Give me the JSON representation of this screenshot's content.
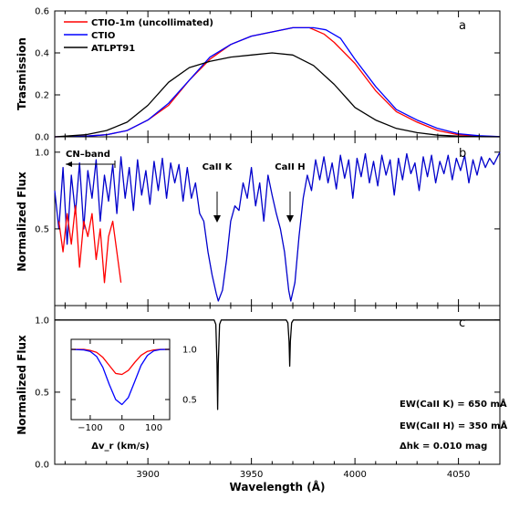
{
  "chart_data": [
    {
      "type": "line",
      "panel": "a",
      "ylabel": "Trasmission",
      "xlim": [
        3855,
        4070
      ],
      "ylim": [
        0.0,
        0.6
      ],
      "yticks": [
        "0.0",
        "0.2",
        "0.4",
        "0.6"
      ],
      "grid": false,
      "legend": "top-left",
      "series": [
        {
          "name": "CTIO-1m (uncollimated)",
          "color": "#ff0000",
          "x": [
            3855,
            3870,
            3880,
            3890,
            3900,
            3910,
            3920,
            3930,
            3940,
            3950,
            3960,
            3970,
            3978,
            3985,
            3990,
            4000,
            4010,
            4020,
            4030,
            4040,
            4050,
            4060,
            4070
          ],
          "y": [
            0.0,
            0.003,
            0.01,
            0.03,
            0.08,
            0.15,
            0.27,
            0.37,
            0.44,
            0.48,
            0.5,
            0.52,
            0.52,
            0.49,
            0.45,
            0.35,
            0.22,
            0.12,
            0.07,
            0.03,
            0.01,
            0.003,
            0.001
          ]
        },
        {
          "name": "CTIO",
          "color": "#0000ff",
          "x": [
            3855,
            3870,
            3880,
            3890,
            3900,
            3910,
            3920,
            3930,
            3940,
            3950,
            3960,
            3970,
            3980,
            3986,
            3993,
            4000,
            4010,
            4020,
            4030,
            4040,
            4050,
            4060,
            4070
          ],
          "y": [
            0.0,
            0.003,
            0.01,
            0.03,
            0.08,
            0.16,
            0.27,
            0.38,
            0.44,
            0.48,
            0.5,
            0.52,
            0.52,
            0.51,
            0.47,
            0.37,
            0.24,
            0.13,
            0.08,
            0.04,
            0.015,
            0.005,
            0.001
          ]
        },
        {
          "name": "ATLPT91",
          "color": "#000000",
          "x": [
            3855,
            3870,
            3880,
            3890,
            3900,
            3910,
            3920,
            3930,
            3940,
            3950,
            3960,
            3970,
            3980,
            3990,
            4000,
            4010,
            4020,
            4030,
            4040,
            4050,
            4060,
            4070
          ],
          "y": [
            0.0,
            0.01,
            0.03,
            0.07,
            0.15,
            0.26,
            0.33,
            0.36,
            0.38,
            0.39,
            0.4,
            0.39,
            0.34,
            0.25,
            0.14,
            0.08,
            0.04,
            0.02,
            0.008,
            0.003,
            0.001,
            0.0
          ]
        }
      ]
    },
    {
      "type": "line",
      "panel": "b",
      "ylabel": "Normalized Flux",
      "xlim": [
        3855,
        4070
      ],
      "ylim": [
        0.0,
        1.1
      ],
      "yticks": [
        "0.5",
        "1.0"
      ],
      "grid": false,
      "annotations": [
        {
          "text": "CN–band",
          "x": 3870,
          "y": 1.05
        },
        {
          "text": "CaII K",
          "x": 3933.7,
          "y": 1.0
        },
        {
          "text": "CaII H",
          "x": 3968.5,
          "y": 1.0
        }
      ],
      "series": [
        {
          "name": "",
          "color": "#0000cc",
          "x": [
            3855,
            3857,
            3859,
            3861,
            3863,
            3865,
            3867,
            3869,
            3871,
            3873,
            3875,
            3877,
            3879,
            3881,
            3883,
            3885,
            3887,
            3889,
            3891,
            3893,
            3895,
            3897,
            3899,
            3901,
            3903,
            3905,
            3907,
            3909,
            3911,
            3913,
            3915,
            3917,
            3919,
            3921,
            3923,
            3925,
            3927,
            3929,
            3931,
            3933,
            3934,
            3936,
            3938,
            3940,
            3942,
            3944,
            3946,
            3948,
            3950,
            3952,
            3954,
            3956,
            3958,
            3960,
            3962,
            3964,
            3966,
            3968,
            3969,
            3971,
            3973,
            3975,
            3977,
            3979,
            3981,
            3983,
            3985,
            3987,
            3989,
            3991,
            3993,
            3995,
            3997,
            3999,
            4001,
            4003,
            4005,
            4007,
            4009,
            4011,
            4013,
            4015,
            4017,
            4019,
            4021,
            4023,
            4025,
            4027,
            4029,
            4031,
            4033,
            4035,
            4037,
            4039,
            4041,
            4043,
            4045,
            4047,
            4049,
            4051,
            4053,
            4055,
            4057,
            4059,
            4061,
            4063,
            4065,
            4067,
            4070
          ],
          "y": [
            0.75,
            0.5,
            0.9,
            0.4,
            0.85,
            0.6,
            0.93,
            0.5,
            0.88,
            0.7,
            0.95,
            0.55,
            0.85,
            0.68,
            0.92,
            0.6,
            0.97,
            0.7,
            0.9,
            0.62,
            0.95,
            0.72,
            0.88,
            0.66,
            0.94,
            0.75,
            0.96,
            0.7,
            0.93,
            0.8,
            0.92,
            0.68,
            0.9,
            0.7,
            0.8,
            0.6,
            0.55,
            0.35,
            0.2,
            0.08,
            0.03,
            0.1,
            0.3,
            0.55,
            0.65,
            0.62,
            0.8,
            0.7,
            0.9,
            0.65,
            0.8,
            0.55,
            0.85,
            0.72,
            0.6,
            0.5,
            0.35,
            0.1,
            0.03,
            0.15,
            0.45,
            0.7,
            0.85,
            0.75,
            0.95,
            0.82,
            0.97,
            0.8,
            0.93,
            0.76,
            0.98,
            0.83,
            0.95,
            0.7,
            0.96,
            0.84,
            0.99,
            0.8,
            0.94,
            0.78,
            0.98,
            0.85,
            0.95,
            0.72,
            0.96,
            0.82,
            0.99,
            0.86,
            0.93,
            0.75,
            0.97,
            0.84,
            0.98,
            0.8,
            0.94,
            0.86,
            0.98,
            0.82,
            0.96,
            0.88,
            0.98,
            0.8,
            0.95,
            0.85,
            0.97,
            0.9,
            0.96,
            0.92,
            1.0
          ]
        },
        {
          "name": "",
          "color": "#ff0000",
          "x": [
            3857,
            3859,
            3861,
            3863,
            3865,
            3867,
            3869,
            3871,
            3873,
            3875,
            3877,
            3879,
            3881,
            3883,
            3885,
            3887
          ],
          "y": [
            0.55,
            0.35,
            0.6,
            0.4,
            0.65,
            0.25,
            0.55,
            0.45,
            0.6,
            0.3,
            0.5,
            0.15,
            0.45,
            0.55,
            0.35,
            0.15
          ]
        }
      ]
    },
    {
      "type": "line",
      "panel": "c",
      "ylabel": "Normalized Flux",
      "xlabel": "Wavelength (Å)",
      "xlim": [
        3855,
        4070
      ],
      "ylim": [
        0.0,
        1.1
      ],
      "xticks": [
        "3900",
        "3950",
        "4000",
        "4050"
      ],
      "yticks": [
        "0.0",
        "0.5",
        "1.0"
      ],
      "grid": false,
      "annotations": [
        {
          "text": "EW(CaII K) = 650 mÅ"
        },
        {
          "text": "EW(CaII H) = 350 mÅ"
        },
        {
          "text": "Δhk = 0.010 mag"
        }
      ],
      "series": [
        {
          "name": "",
          "color": "#000000",
          "x": [
            3855,
            3932.0,
            3932.8,
            3933.4,
            3933.7,
            3934.0,
            3934.6,
            3935.4,
            3966.8,
            3967.6,
            3968.2,
            3968.5,
            3968.8,
            3969.4,
            3970.2,
            4070
          ],
          "y": [
            1.0,
            1.0,
            0.97,
            0.7,
            0.38,
            0.7,
            0.97,
            1.0,
            1.0,
            0.98,
            0.85,
            0.68,
            0.85,
            0.98,
            1.0,
            1.0
          ]
        }
      ],
      "inset": {
        "xlabel": "Δv_r (km/s)",
        "xlim": [
          -160,
          150
        ],
        "ylim": [
          0.3,
          1.1
        ],
        "xticks": [
          "−100",
          "0",
          "100"
        ],
        "yticks": [
          "0.5",
          "1.0"
        ],
        "series": [
          {
            "name": "",
            "color": "#ff0000",
            "x": [
              -160,
              -120,
              -100,
              -80,
              -60,
              -40,
              -20,
              0,
              20,
              40,
              60,
              80,
              100,
              120,
              150
            ],
            "y": [
              1.0,
              1.0,
              0.99,
              0.97,
              0.92,
              0.84,
              0.76,
              0.75,
              0.79,
              0.87,
              0.94,
              0.98,
              0.995,
              1.0,
              1.0
            ]
          },
          {
            "name": "",
            "color": "#0000ff",
            "x": [
              -160,
              -120,
              -100,
              -80,
              -60,
              -40,
              -20,
              0,
              20,
              40,
              60,
              80,
              100,
              120,
              150
            ],
            "y": [
              1.0,
              0.995,
              0.98,
              0.93,
              0.82,
              0.65,
              0.5,
              0.45,
              0.52,
              0.68,
              0.84,
              0.94,
              0.985,
              0.998,
              1.0
            ]
          }
        ]
      }
    }
  ]
}
